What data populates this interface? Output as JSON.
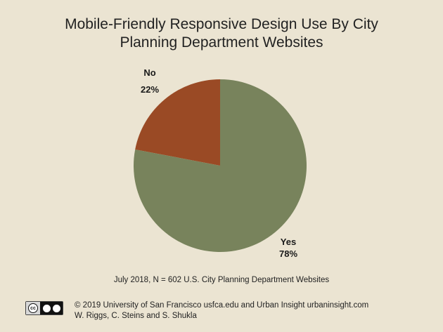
{
  "chart_data": {
    "type": "pie",
    "title_lines": [
      "Mobile-Friendly Responsive Design Use By City",
      "Planning Department Websites"
    ],
    "slices": [
      {
        "label": "No",
        "value": 22,
        "value_label": "22%",
        "color": "#9a4a25"
      },
      {
        "label": "Yes",
        "value": 78,
        "value_label": "78%",
        "color": "#78835c"
      }
    ],
    "legend": "none"
  },
  "caption": "July 2018, N = 602 U.S. City Planning Department Websites",
  "footer": {
    "line1": "© 2019 University of San Francisco usfca.edu and Urban Insight urbaninsight.com",
    "line2": "W. Riggs, C. Steins and S. Shukla",
    "license_badge_icon": "cc-by-sa-icon",
    "badge_text": "cc"
  }
}
